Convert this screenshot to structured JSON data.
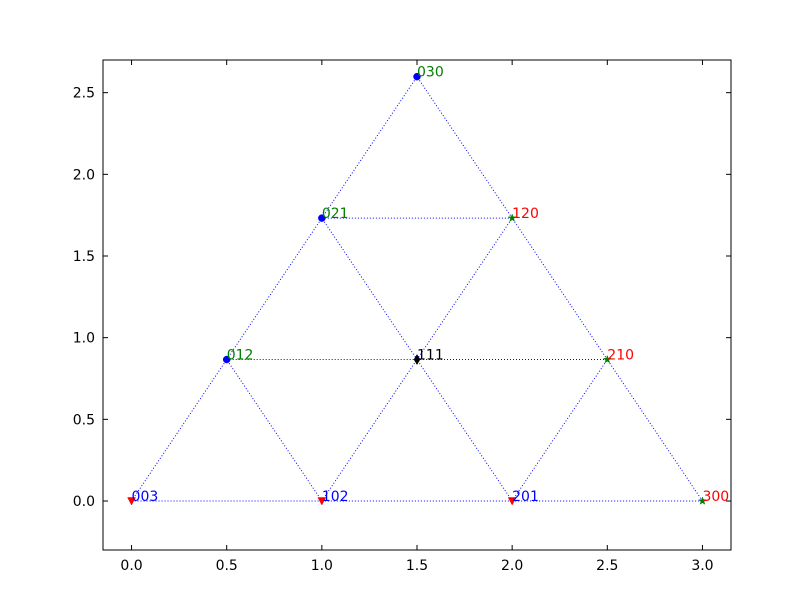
{
  "chart_data": {
    "type": "scatter",
    "points": [
      {
        "label": "003",
        "x": 0,
        "y": 0,
        "marker": "triangle-down",
        "color": "#ff0000",
        "label_color": "#0000ff"
      },
      {
        "label": "102",
        "x": 1,
        "y": 0,
        "marker": "triangle-down",
        "color": "#ff0000",
        "label_color": "#0000ff"
      },
      {
        "label": "201",
        "x": 2,
        "y": 0,
        "marker": "triangle-down",
        "color": "#ff0000",
        "label_color": "#0000ff"
      },
      {
        "label": "300",
        "x": 3,
        "y": 0,
        "marker": "star",
        "color": "#008000",
        "label_color": "#ff0000"
      },
      {
        "label": "012",
        "x": 0.5,
        "y": 0.866,
        "marker": "circle",
        "color": "#0000ff",
        "label_color": "#008000"
      },
      {
        "label": "111",
        "x": 1.5,
        "y": 0.866,
        "marker": "diamond",
        "color": "#000000",
        "label_color": "#000000"
      },
      {
        "label": "210",
        "x": 2.5,
        "y": 0.866,
        "marker": "star",
        "color": "#008000",
        "label_color": "#ff0000"
      },
      {
        "label": "021",
        "x": 1,
        "y": 1.732,
        "marker": "circle",
        "color": "#0000ff",
        "label_color": "#008000"
      },
      {
        "label": "120",
        "x": 2,
        "y": 1.732,
        "marker": "star",
        "color": "#008000",
        "label_color": "#ff0000"
      },
      {
        "label": "030",
        "x": 1.5,
        "y": 2.598,
        "marker": "circle",
        "color": "#0000ff",
        "label_color": "#008000"
      }
    ],
    "line_color": "#0000ff",
    "xlim": [
      -0.15,
      3.15
    ],
    "ylim": [
      -0.3,
      2.7
    ],
    "xticks": [
      {
        "value": 0,
        "label": "0.0"
      },
      {
        "value": 0.5,
        "label": "0.5"
      },
      {
        "value": 1,
        "label": "1.0"
      },
      {
        "value": 1.5,
        "label": "1.5"
      },
      {
        "value": 2,
        "label": "2.0"
      },
      {
        "value": 2.5,
        "label": "2.5"
      },
      {
        "value": 3,
        "label": "3.0"
      }
    ],
    "yticks": [
      {
        "value": 0,
        "label": "0.0"
      },
      {
        "value": 0.5,
        "label": "0.5"
      },
      {
        "value": 1,
        "label": "1.0"
      },
      {
        "value": 1.5,
        "label": "1.5"
      },
      {
        "value": 2,
        "label": "2.0"
      },
      {
        "value": 2.5,
        "label": "2.5"
      }
    ]
  }
}
